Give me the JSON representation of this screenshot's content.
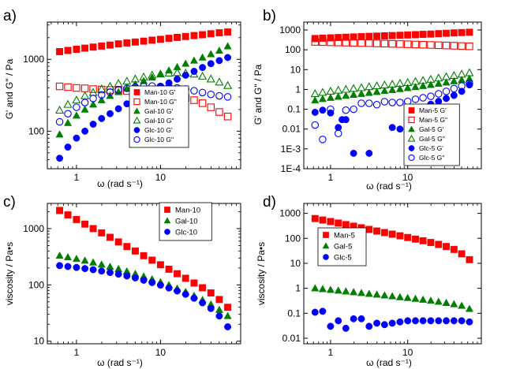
{
  "chart_data": [
    {
      "id": "a",
      "panel_label": "a)",
      "type": "scatter",
      "xscale": "log",
      "yscale": "log",
      "xlim": [
        0.45,
        90
      ],
      "ylim": [
        30,
        3300
      ],
      "xticks": [
        1,
        10
      ],
      "xtick_labels": [
        "1",
        "10"
      ],
      "yticks": [
        100,
        1000
      ],
      "ytick_labels": [
        "100",
        "1000"
      ],
      "xlabel": "ω (rad s⁻¹)",
      "ylabel": "G' and G\" / Pa",
      "legend_position": "bottom-right",
      "legend": [
        "Man-10 G'",
        "Man-10 G\"",
        "Gal-10 G'",
        "Gal-10 G\"",
        "Glc-10 G'",
        "Glc-10 G\""
      ],
      "x": [
        0.63,
        0.79,
        1.0,
        1.26,
        1.58,
        1.99,
        2.51,
        3.16,
        3.98,
        5.01,
        6.31,
        7.94,
        10.0,
        12.6,
        15.8,
        19.9,
        25.1,
        31.6,
        39.8,
        50.1,
        63.1
      ],
      "series": [
        {
          "name": "Man-10 G'",
          "marker": "square",
          "filled": true,
          "color": "#ff0000",
          "values": [
            1280,
            1330,
            1380,
            1430,
            1480,
            1530,
            1580,
            1640,
            1690,
            1740,
            1790,
            1850,
            1900,
            1960,
            2020,
            2080,
            2140,
            2200,
            2270,
            2340,
            2400
          ]
        },
        {
          "name": "Man-10 G\"",
          "marker": "square",
          "filled": false,
          "color": "#ff0000",
          "values": [
            420,
            410,
            400,
            395,
            385,
            380,
            375,
            370,
            362,
            355,
            347,
            340,
            330,
            320,
            305,
            290,
            270,
            245,
            215,
            185,
            160
          ]
        },
        {
          "name": "Gal-10 G'",
          "marker": "triangle",
          "filled": true,
          "color": "#008000",
          "values": [
            90,
            130,
            165,
            200,
            235,
            270,
            310,
            350,
            395,
            450,
            500,
            560,
            630,
            700,
            780,
            870,
            960,
            1060,
            1180,
            1320,
            1520
          ]
        },
        {
          "name": "Gal-10 G\"",
          "marker": "triangle",
          "filled": false,
          "color": "#008000",
          "values": [
            195,
            235,
            270,
            310,
            345,
            385,
            420,
            460,
            495,
            530,
            565,
            600,
            620,
            640,
            650,
            640,
            620,
            580,
            530,
            480,
            430
          ]
        },
        {
          "name": "Glc-10 G'",
          "marker": "circle",
          "filled": true,
          "color": "#0000ff",
          "values": [
            42,
            60,
            80,
            100,
            125,
            150,
            175,
            205,
            240,
            275,
            315,
            360,
            415,
            470,
            530,
            600,
            680,
            770,
            870,
            960,
            1060
          ]
        },
        {
          "name": "Glc-10 G\"",
          "marker": "circle",
          "filled": false,
          "color": "#0000ff",
          "values": [
            135,
            175,
            215,
            250,
            285,
            320,
            350,
            375,
            395,
            410,
            420,
            425,
            420,
            412,
            400,
            385,
            365,
            345,
            325,
            310,
            300
          ]
        }
      ]
    },
    {
      "id": "b",
      "panel_label": "b)",
      "type": "scatter",
      "xscale": "log",
      "yscale": "log",
      "xlim": [
        0.45,
        90
      ],
      "ylim": [
        0.0001,
        2500
      ],
      "xticks": [
        1,
        10
      ],
      "xtick_labels": [
        "1",
        "10"
      ],
      "yticks": [
        0.0001,
        0.001,
        0.01,
        0.1,
        1,
        10,
        100,
        1000
      ],
      "ytick_labels": [
        "1E-4",
        "1E-3",
        "0.01",
        "0.1",
        "1",
        "10",
        "100",
        "1000"
      ],
      "xlabel": "ω (rad s⁻¹)",
      "ylabel": "G' and G\" / Pa",
      "legend_position": "bottom-right",
      "legend": [
        "Man-5 G'",
        "Man-5 G\"",
        "Gal-5 G'",
        "Gal-5 G\"",
        "Glc-5 G'",
        "Glc-5 G\""
      ],
      "x": [
        0.63,
        0.79,
        1.0,
        1.26,
        1.58,
        1.99,
        2.51,
        3.16,
        3.98,
        5.01,
        6.31,
        7.94,
        10.0,
        12.6,
        15.8,
        19.9,
        25.1,
        31.6,
        39.8,
        50.1,
        63.1
      ],
      "series": [
        {
          "name": "Man-5 G'",
          "marker": "square",
          "filled": true,
          "color": "#ff0000",
          "values": [
            370,
            385,
            400,
            415,
            430,
            445,
            460,
            475,
            490,
            505,
            520,
            540,
            560,
            580,
            600,
            620,
            650,
            680,
            710,
            740,
            770
          ]
        },
        {
          "name": "Man-5 G\"",
          "marker": "square",
          "filled": false,
          "color": "#ff0000",
          "values": [
            250,
            245,
            240,
            235,
            230,
            225,
            220,
            215,
            210,
            205,
            200,
            195,
            190,
            185,
            180,
            175,
            170,
            165,
            160,
            155,
            150
          ]
        },
        {
          "name": "Gal-5 G'",
          "marker": "triangle",
          "filled": true,
          "color": "#008000",
          "values": [
            0.28,
            0.33,
            0.38,
            0.43,
            0.48,
            0.54,
            0.6,
            0.67,
            0.75,
            0.84,
            0.94,
            1.05,
            1.18,
            1.32,
            1.5,
            1.7,
            1.95,
            2.25,
            2.6,
            3.0,
            3.5
          ]
        },
        {
          "name": "Gal-5 G\"",
          "marker": "triangle",
          "filled": false,
          "color": "#008000",
          "values": [
            0.6,
            0.7,
            0.8,
            0.9,
            1.0,
            1.1,
            1.2,
            1.35,
            1.5,
            1.65,
            1.8,
            2.0,
            2.2,
            2.5,
            2.8,
            3.2,
            3.7,
            4.3,
            5.0,
            5.8,
            6.8
          ]
        },
        {
          "name": "Glc-5 G'",
          "marker": "circle",
          "filled": true,
          "color": "#0000ff",
          "x": [
            0.63,
            0.79,
            1.0,
            1.26,
            1.41,
            1.58,
            1.99,
            3.16,
            6.31,
            7.94,
            10.0,
            12.6,
            15.8,
            19.9,
            25.1,
            31.6,
            39.8,
            50.1,
            63.1
          ],
          "values": [
            0.07,
            0.09,
            0.065,
            0.012,
            0.03,
            0.03,
            0.0006,
            0.0006,
            0.012,
            0.01,
            0.045,
            0.06,
            0.09,
            0.18,
            0.25,
            0.35,
            0.5,
            0.8,
            1.7
          ]
        },
        {
          "name": "Glc-5 G\"",
          "marker": "circle",
          "filled": false,
          "color": "#0000ff",
          "x": [
            0.63,
            0.79,
            1.0,
            1.26,
            1.58,
            1.99,
            2.51,
            3.16,
            3.98,
            5.01,
            6.31,
            7.94,
            10.0,
            12.6,
            15.8,
            19.9,
            25.1,
            31.6,
            39.8,
            50.1,
            63.1
          ],
          "values": [
            0.016,
            0.003,
            0.1,
            0.006,
            0.09,
            0.1,
            0.2,
            0.2,
            0.17,
            0.24,
            0.22,
            0.22,
            0.25,
            0.32,
            0.38,
            0.45,
            0.6,
            0.8,
            1.1,
            1.5,
            2.0
          ]
        }
      ]
    },
    {
      "id": "c",
      "panel_label": "c)",
      "type": "scatter",
      "xscale": "log",
      "yscale": "log",
      "xlim": [
        0.45,
        90
      ],
      "ylim": [
        9,
        2800
      ],
      "xticks": [
        1,
        10
      ],
      "xtick_labels": [
        "1",
        "10"
      ],
      "yticks": [
        10,
        100,
        1000
      ],
      "ytick_labels": [
        "10",
        "100",
        "1000"
      ],
      "xlabel": "ω (rad s⁻¹)",
      "ylabel": "viscosity / Pa•s",
      "legend_position": "top-right",
      "legend": [
        "Man-10",
        "Gal-10",
        "Glc-10"
      ],
      "x": [
        0.63,
        0.79,
        1.0,
        1.26,
        1.58,
        1.99,
        2.51,
        3.16,
        3.98,
        5.01,
        6.31,
        7.94,
        10.0,
        12.6,
        15.8,
        19.9,
        25.1,
        31.6,
        39.8,
        50.1,
        63.1
      ],
      "series": [
        {
          "name": "Man-10",
          "marker": "square",
          "filled": true,
          "color": "#ff0000",
          "values": [
            2100,
            1750,
            1450,
            1200,
            1000,
            840,
            700,
            580,
            480,
            400,
            330,
            275,
            228,
            190,
            158,
            131,
            108,
            89,
            72,
            55,
            40
          ]
        },
        {
          "name": "Gal-10",
          "marker": "triangle",
          "filled": true,
          "color": "#008000",
          "values": [
            330,
            310,
            290,
            270,
            250,
            230,
            210,
            192,
            174,
            157,
            141,
            126,
            112,
            99,
            86,
            75,
            64,
            54,
            45,
            36,
            28
          ]
        },
        {
          "name": "Glc-10",
          "marker": "circle",
          "filled": true,
          "color": "#0000ff",
          "values": [
            220,
            212,
            204,
            195,
            186,
            176,
            166,
            155,
            144,
            133,
            121,
            110,
            99,
            88,
            78,
            68,
            58,
            48,
            38,
            28,
            18
          ]
        }
      ]
    },
    {
      "id": "d",
      "panel_label": "d)",
      "type": "scatter",
      "xscale": "log",
      "yscale": "log",
      "xlim": [
        0.45,
        90
      ],
      "ylim": [
        0.006,
        2500
      ],
      "xticks": [
        1,
        10
      ],
      "xtick_labels": [
        "1",
        "10"
      ],
      "yticks": [
        0.01,
        0.1,
        1,
        10,
        100,
        1000
      ],
      "ytick_labels": [
        "0.01",
        "0.1",
        "1",
        "10",
        "100",
        "1000"
      ],
      "xlabel": "ω (rad s⁻¹)",
      "ylabel": "viscosity / Pa•s",
      "legend_position": "middle-left",
      "legend": [
        "Man-5",
        "Gal-5",
        "Glc-5"
      ],
      "x": [
        0.63,
        0.79,
        1.0,
        1.26,
        1.58,
        1.99,
        2.51,
        3.16,
        3.98,
        5.01,
        6.31,
        7.94,
        10.0,
        12.6,
        15.8,
        19.9,
        25.1,
        31.6,
        39.8,
        50.1,
        63.1
      ],
      "series": [
        {
          "name": "Man-5",
          "marker": "square",
          "filled": true,
          "color": "#ff0000",
          "values": [
            620,
            540,
            470,
            410,
            355,
            305,
            265,
            228,
            196,
            170,
            147,
            126,
            108,
            93,
            80,
            68,
            57,
            47,
            36,
            24,
            14
          ]
        },
        {
          "name": "Gal-5",
          "marker": "triangle",
          "filled": true,
          "color": "#008000",
          "values": [
            1.0,
            0.93,
            0.87,
            0.81,
            0.75,
            0.7,
            0.65,
            0.6,
            0.56,
            0.52,
            0.48,
            0.44,
            0.41,
            0.38,
            0.35,
            0.32,
            0.29,
            0.26,
            0.23,
            0.2,
            0.15
          ]
        },
        {
          "name": "Glc-5",
          "marker": "circle",
          "filled": true,
          "color": "#0000ff",
          "x": [
            0.63,
            0.79,
            1.0,
            1.26,
            1.58,
            1.99,
            2.51,
            3.16,
            3.98,
            5.01,
            6.31,
            7.94,
            10.0,
            12.6,
            15.8,
            19.9,
            25.1,
            31.6,
            39.8,
            50.1,
            63.1
          ],
          "values": [
            0.11,
            0.12,
            0.03,
            0.05,
            0.025,
            0.06,
            0.06,
            0.03,
            0.04,
            0.035,
            0.04,
            0.045,
            0.05,
            0.05,
            0.05,
            0.05,
            0.05,
            0.05,
            0.05,
            0.05,
            0.045
          ]
        }
      ]
    }
  ]
}
